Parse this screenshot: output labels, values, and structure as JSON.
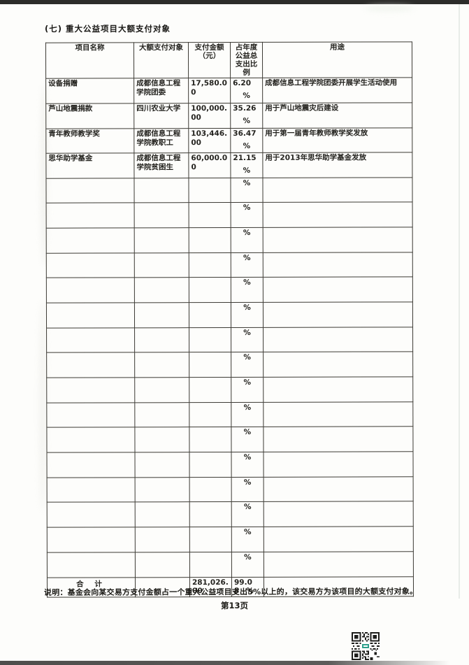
{
  "page": {
    "title": "(七) 重大公益项目大额支付对象",
    "note": "说明：基金会向某交易方支付金额占一个重大公益项目支出5%以上的，该交易方为该项目的大额支付对象。",
    "page_number": "第13页"
  },
  "table": {
    "headers": {
      "project_name": "项目名称",
      "payee": "大额支付对象",
      "amount": "支付金额（元）",
      "ratio": "占年度公益总支出比例",
      "usage": "用途"
    },
    "rows": [
      {
        "name": "设备捐赠",
        "payee": "成都信息工程学院团委",
        "amount": "17,580.00",
        "percent": "6.20",
        "usage": "成都信息工程学院团委开展学生活动使用"
      },
      {
        "name": "芦山地震捐款",
        "payee": "四川农业大学",
        "amount": "100,000.00",
        "percent": "35.26",
        "usage": "用于芦山地震灾后建设"
      },
      {
        "name": "青年教师教学奖",
        "payee": "成都信息工程学院教职工",
        "amount": "103,446.00",
        "percent": "36.47",
        "usage": "用于第一届青年教师教学奖发放"
      },
      {
        "name": "思华助学基金",
        "payee": "成都信息工程学院贫困生",
        "amount": "60,000.00",
        "percent": "21.15",
        "usage": "用于2013年思华助学基金发放"
      }
    ],
    "empty_row_count": 16,
    "percent_sign": "%",
    "total": {
      "label": "合 计",
      "amount": "281,026.00",
      "percent": "99.08"
    }
  },
  "colors": {
    "paper": "#fdfdfb",
    "ink": "#1c1b18",
    "table_border": "#3c3a34",
    "scan_bar": "#2c2c2a",
    "qr_accent": "#2fa08c"
  }
}
